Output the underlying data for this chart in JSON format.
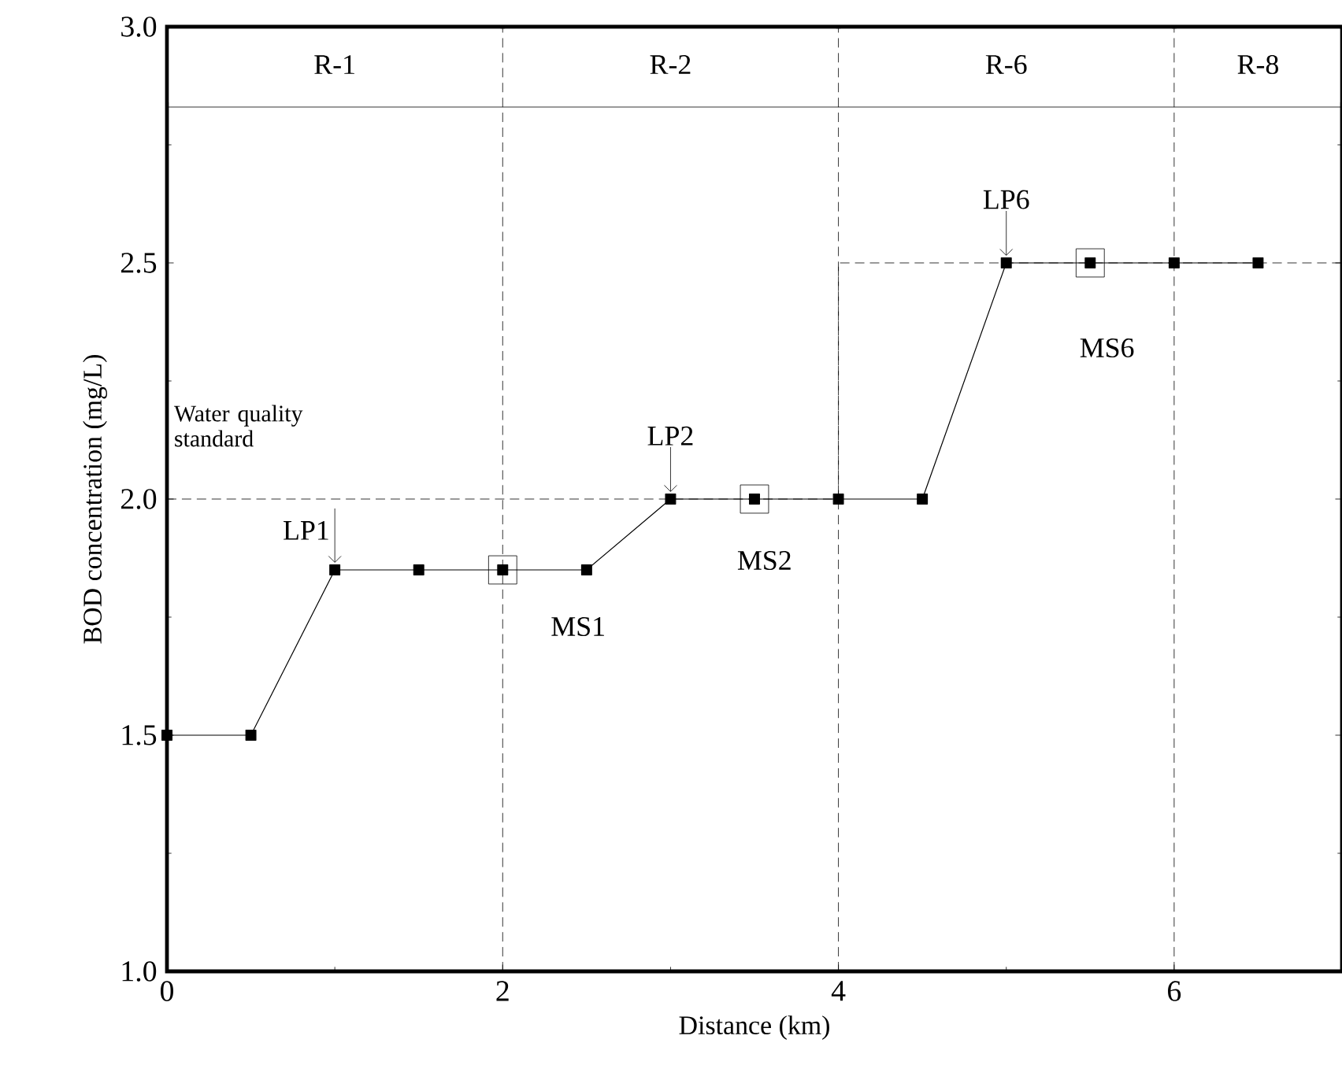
{
  "chart_data": {
    "type": "line",
    "xlabel": "Distance (km)",
    "ylabel": "BOD concentration (mg/L)",
    "xlim": [
      0,
      7
    ],
    "ylim": [
      1,
      3
    ],
    "xticks": [
      0,
      2,
      4,
      6
    ],
    "yticks": [
      {
        "value": 1,
        "label": "1.0"
      },
      {
        "value": 1.5,
        "label": "1.5"
      },
      {
        "value": 2,
        "label": "2.0"
      },
      {
        "value": 2.5,
        "label": "2.5"
      },
      {
        "value": 3,
        "label": "3.0"
      }
    ],
    "grid": false,
    "series": [
      {
        "color": "#000000",
        "marker": "square",
        "line_style": "solid",
        "x": [
          0,
          0.5,
          1,
          1.5,
          2,
          2.5,
          3,
          3.5,
          4,
          4.5,
          5,
          5.5,
          6,
          6.5
        ],
        "values": [
          1.5,
          1.5,
          1.85,
          1.85,
          1.85,
          1.85,
          2.0,
          2.0,
          2.0,
          2.0,
          2.5,
          2.5,
          2.5,
          2.5
        ]
      },
      {
        "color": "#000000",
        "marker": "none",
        "line_style": "dashed",
        "x": [
          0,
          4,
          4,
          7
        ],
        "values": [
          2.0,
          2.0,
          2.5,
          2.5
        ]
      }
    ],
    "ref_lines": [
      {
        "axis": "x",
        "value": 2,
        "line_style": "dashed"
      },
      {
        "axis": "x",
        "value": 4,
        "line_style": "dashed"
      },
      {
        "axis": "x",
        "value": 6,
        "line_style": "dashed"
      },
      {
        "axis": "y",
        "value": 2.83,
        "line_style": "solid"
      }
    ],
    "bands": [
      {
        "axis": "x",
        "from": 0,
        "to": 2,
        "label": "R-1",
        "color": "#ffffff"
      },
      {
        "axis": "x",
        "from": 2,
        "to": 4,
        "label": "R-2",
        "color": "#ffffff"
      },
      {
        "axis": "x",
        "from": 4,
        "to": 6,
        "label": "R-6",
        "color": "#ffffff"
      },
      {
        "axis": "x",
        "from": 6,
        "to": 7,
        "label": "R-8",
        "color": "#ffffff"
      }
    ],
    "annotations": [
      {
        "text": "Water quality standard",
        "x": 0,
        "y": 2.0
      },
      {
        "text": "LP1",
        "x": 1,
        "y": 1.85
      },
      {
        "text": "LP2",
        "x": 3,
        "y": 2.0
      },
      {
        "text": "LP6",
        "x": 5,
        "y": 2.5
      },
      {
        "text": "MS1",
        "x": 2,
        "y": 1.85
      },
      {
        "text": "MS2",
        "x": 3.5,
        "y": 2.0
      },
      {
        "text": "MS6",
        "x": 5.5,
        "y": 2.5
      }
    ]
  }
}
